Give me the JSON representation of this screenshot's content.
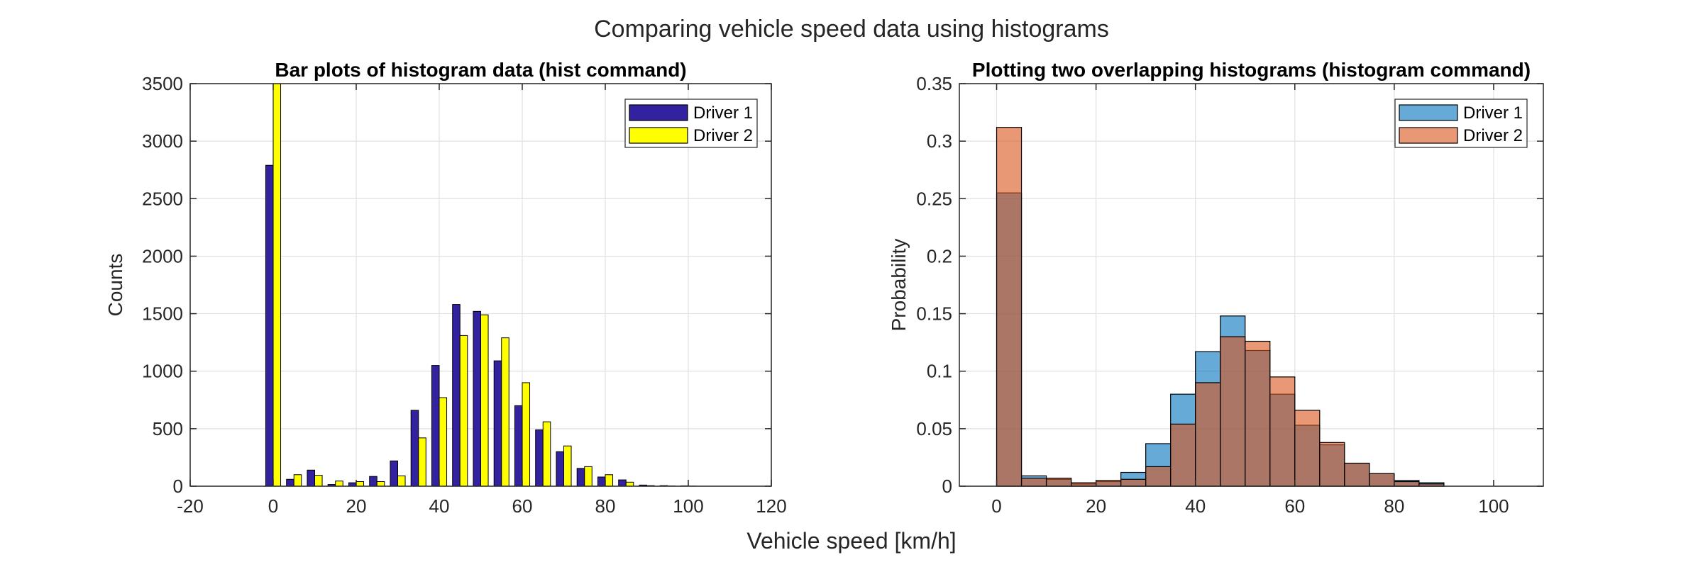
{
  "figure": {
    "title": "Comparing vehicle speed data using histograms",
    "xlabel": "Vehicle speed [km/h]"
  },
  "chart_data": [
    {
      "type": "bar",
      "title": "Bar plots of histogram data (hist command)",
      "xlabel": "",
      "ylabel": "Counts",
      "xlim": [
        -20,
        120
      ],
      "ylim": [
        0,
        3500
      ],
      "xticks": [
        "-20",
        "0",
        "20",
        "40",
        "60",
        "80",
        "100",
        "120"
      ],
      "yticks": [
        "0",
        "500",
        "1000",
        "1500",
        "2000",
        "2500",
        "3000",
        "3500"
      ],
      "grid": true,
      "legend_position": "top-right",
      "categories": [
        0,
        5,
        10,
        15,
        20,
        25,
        30,
        35,
        40,
        45,
        50,
        55,
        60,
        65,
        70,
        75,
        80,
        85,
        90,
        95,
        100
      ],
      "series": [
        {
          "name": "Driver 1",
          "color": "#3322A0",
          "values": [
            2790,
            60,
            140,
            15,
            30,
            85,
            220,
            660,
            1050,
            1580,
            1520,
            1090,
            700,
            490,
            300,
            155,
            80,
            55,
            10,
            5,
            3
          ]
        },
        {
          "name": "Driver 2",
          "color": "#FFFF00",
          "values": [
            3500,
            100,
            95,
            45,
            40,
            40,
            90,
            420,
            770,
            1310,
            1490,
            1290,
            900,
            560,
            350,
            170,
            100,
            35,
            5,
            2,
            1
          ]
        }
      ]
    },
    {
      "type": "bar",
      "subtype": "overlapping-histogram",
      "title": "Plotting two overlapping histograms (histogram command)",
      "xlabel": "",
      "ylabel": "Probability",
      "xlim": [
        -7.5,
        110
      ],
      "ylim": [
        0,
        0.35
      ],
      "xticks": [
        "0",
        "20",
        "40",
        "60",
        "80",
        "100"
      ],
      "yticks": [
        "0",
        "0.05",
        "0.1",
        "0.15",
        "0.2",
        "0.25",
        "0.3",
        "0.35"
      ],
      "grid": true,
      "legend_position": "top-right",
      "bin_edges": [
        0,
        5,
        10,
        15,
        20,
        25,
        30,
        35,
        40,
        45,
        50,
        55,
        60,
        65,
        70,
        75,
        80,
        85,
        90
      ],
      "series": [
        {
          "name": "Driver 1",
          "color": "#0072BD",
          "values": [
            0.255,
            0.009,
            0.006,
            0.002,
            0.004,
            0.012,
            0.037,
            0.08,
            0.117,
            0.148,
            0.118,
            0.08,
            0.053,
            0.036,
            0.02,
            0.011,
            0.005,
            0.003
          ]
        },
        {
          "name": "Driver 2",
          "color": "#D95319",
          "values": [
            0.312,
            0.007,
            0.007,
            0.003,
            0.005,
            0.006,
            0.017,
            0.054,
            0.09,
            0.13,
            0.126,
            0.095,
            0.066,
            0.038,
            0.02,
            0.011,
            0.004,
            0.002
          ]
        }
      ]
    }
  ]
}
